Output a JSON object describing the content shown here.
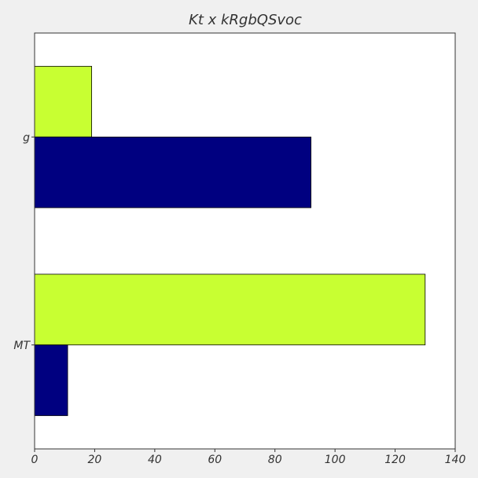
{
  "chart_data": {
    "type": "bar",
    "orientation": "horizontal",
    "title": "Kt x kRgbQSvoc",
    "xlabel": "",
    "ylabel": "",
    "categories": [
      "g",
      "MT"
    ],
    "series": [
      {
        "color": "#c8ff32",
        "values": [
          19,
          130
        ]
      },
      {
        "color": "#000080",
        "values": [
          92,
          11
        ]
      }
    ],
    "xlim": [
      0,
      140
    ],
    "xticks": [
      0,
      20,
      40,
      60,
      80,
      100,
      120,
      140
    ],
    "grid": false,
    "legend": "none"
  }
}
